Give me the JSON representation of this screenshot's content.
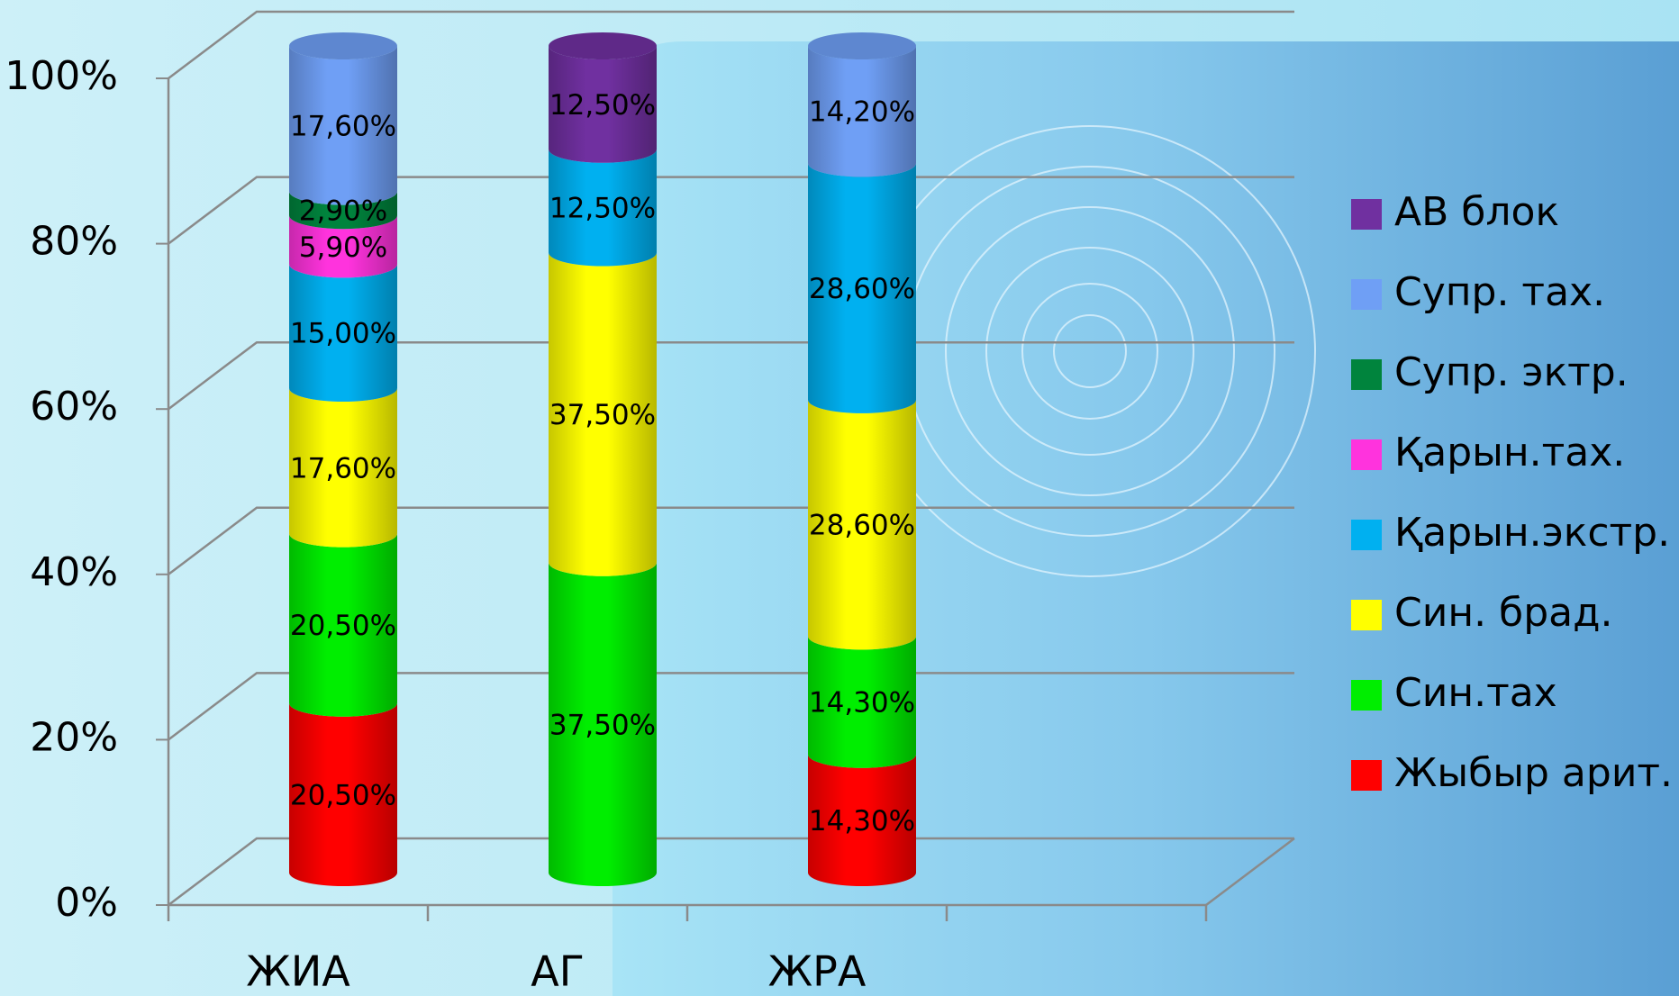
{
  "chart_data": {
    "type": "stacked-cylinder",
    "categories": [
      "ЖИА",
      "АГ",
      "ЖРА",
      null
    ],
    "ylim": [
      0,
      100
    ],
    "yticks": [
      {
        "value": 0,
        "label": "0%"
      },
      {
        "value": 20,
        "label": "20%"
      },
      {
        "value": 40,
        "label": "40%"
      },
      {
        "value": 60,
        "label": "60%"
      },
      {
        "value": 80,
        "label": "80%"
      },
      {
        "value": 100,
        "label": "100%"
      }
    ],
    "grid": true,
    "legend": "right",
    "series": [
      {
        "name": "Жыбыр арит.",
        "color": "#ff0000",
        "values": [
          20.5,
          null,
          14.3,
          null
        ],
        "value_labels": [
          "20,50%",
          null,
          "14,30%",
          null
        ]
      },
      {
        "name": "Син.тах",
        "color": "#00ee00",
        "values": [
          20.5,
          37.5,
          14.3,
          null
        ],
        "value_labels": [
          "20,50%",
          "37,50%",
          "14,30%",
          null
        ]
      },
      {
        "name": "Син. брад.",
        "color": "#ffff00",
        "values": [
          17.6,
          37.5,
          28.6,
          null
        ],
        "value_labels": [
          "17,60%",
          "37,50%",
          "28,60%",
          null
        ]
      },
      {
        "name": "Қарын.экстр.",
        "color": "#00b0f0",
        "values": [
          15.0,
          12.5,
          28.6,
          null
        ],
        "value_labels": [
          "15,00%",
          "12,50%",
          "28,60%",
          null
        ]
      },
      {
        "name": "Қарын.тах.",
        "color": "#ff33dd",
        "values": [
          5.9,
          null,
          null,
          null
        ],
        "value_labels": [
          "5,90%",
          null,
          null,
          null
        ]
      },
      {
        "name": "Супр. эктр.",
        "color": "#00843d",
        "values": [
          2.9,
          null,
          null,
          null
        ],
        "value_labels": [
          "2,90%",
          null,
          null,
          null
        ]
      },
      {
        "name": "Супр. тах.",
        "color": "#6f9ff5",
        "values": [
          17.6,
          null,
          14.2,
          null
        ],
        "value_labels": [
          "17,60%",
          null,
          "14,20%",
          null
        ]
      },
      {
        "name": "АВ блок",
        "color": "#7030a0",
        "values": [
          null,
          12.5,
          null,
          null
        ],
        "value_labels": [
          null,
          "12,50%",
          null,
          null
        ]
      }
    ]
  }
}
